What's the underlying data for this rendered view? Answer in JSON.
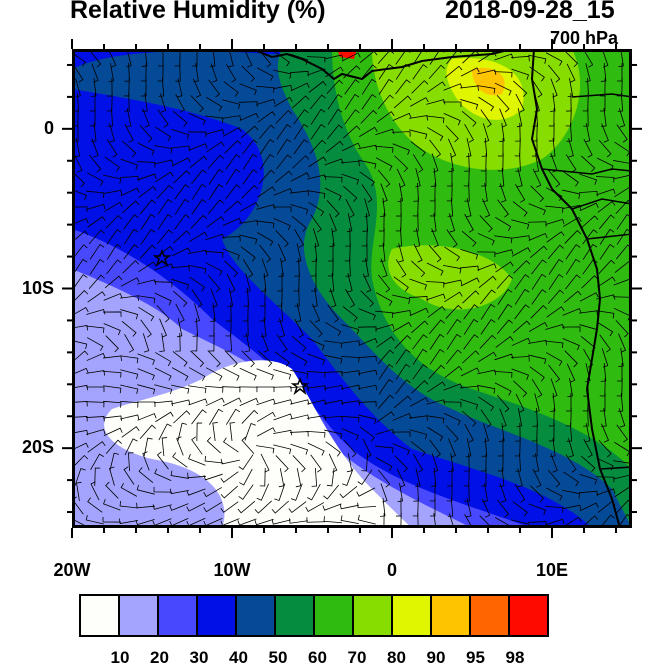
{
  "header": {
    "title": "Relative Humidity (%)",
    "datetime": "2018-09-28_15",
    "level": "700 hPa"
  },
  "axes": {
    "x_labels": [
      {
        "text": "20W",
        "lon": -20
      },
      {
        "text": "10W",
        "lon": -10
      },
      {
        "text": "0",
        "lon": 0
      },
      {
        "text": "10E",
        "lon": 10
      }
    ],
    "y_labels": [
      {
        "text": "0",
        "lat": 0
      },
      {
        "text": "10S",
        "lat": -10
      },
      {
        "text": "20S",
        "lat": -20
      }
    ],
    "lon_range": [
      -20,
      15
    ],
    "lat_range": [
      -25,
      5
    ]
  },
  "colorbar": {
    "colors": [
      "#fefefa",
      "#a4a4ff",
      "#4848ff",
      "#0010e6",
      "#044a96",
      "#068c3e",
      "#30bb10",
      "#88dd00",
      "#e0f500",
      "#ffc400",
      "#ff6600",
      "#ff0a00"
    ],
    "labels": [
      "10",
      "20",
      "30",
      "40",
      "50",
      "60",
      "70",
      "80",
      "90",
      "95",
      "98"
    ]
  }
}
